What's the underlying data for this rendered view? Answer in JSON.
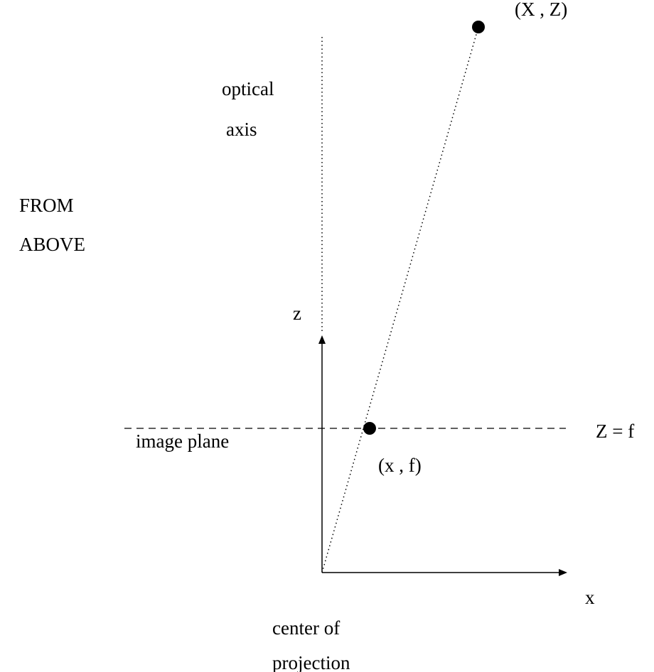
{
  "labels": {
    "point_world": "(X , Z)",
    "optical_axis_line1": "optical",
    "optical_axis_line2": "axis",
    "view_line1": "FROM",
    "view_line2": "ABOVE",
    "z_axis": "z",
    "x_axis": "x",
    "plane_equation": "Z = f",
    "image_plane": "image plane",
    "point_image": "(x , f)",
    "center_line1": "center of",
    "center_line2": "projection"
  },
  "colors": {
    "ink": "#000000",
    "background": "#ffffff"
  }
}
